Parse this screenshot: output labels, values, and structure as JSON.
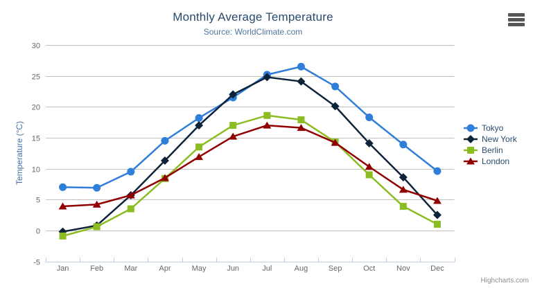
{
  "chart": {
    "credits": "Highcharts.com",
    "menu_icon": "hamburger-icon"
  },
  "colors": {
    "title": "#274b6d",
    "subtitle": "#4d759e",
    "axis_title": "#4572a7",
    "tick_label": "#666666",
    "grid_line": "#c0c0c0",
    "axis_line": "#c0d0e0",
    "legend_label": "#274b6d",
    "credits": "#909090",
    "menu_bars": "#565656"
  },
  "chart_data": {
    "type": "line",
    "title": "Monthly Average Temperature",
    "subtitle": "Source: WorldClimate.com",
    "xlabel": "",
    "ylabel": "Temperature (°C)",
    "categories": [
      "Jan",
      "Feb",
      "Mar",
      "Apr",
      "May",
      "Jun",
      "Jul",
      "Aug",
      "Sep",
      "Oct",
      "Nov",
      "Dec"
    ],
    "ylim": [
      -5,
      30
    ],
    "yticks": [
      -5,
      0,
      5,
      10,
      15,
      20,
      25,
      30
    ],
    "grid": true,
    "legend_position": "right-middle",
    "series": [
      {
        "name": "Tokyo",
        "color": "#2f7ed8",
        "marker": "circle",
        "values": [
          7.0,
          6.9,
          9.5,
          14.5,
          18.2,
          21.5,
          25.2,
          26.5,
          23.3,
          18.3,
          13.9,
          9.6
        ]
      },
      {
        "name": "New York",
        "color": "#0d233a",
        "marker": "diamond",
        "values": [
          -0.2,
          0.8,
          5.7,
          11.3,
          17.0,
          22.0,
          24.8,
          24.1,
          20.1,
          14.1,
          8.6,
          2.5
        ]
      },
      {
        "name": "Berlin",
        "color": "#8bbc21",
        "marker": "square",
        "values": [
          -0.9,
          0.6,
          3.5,
          8.4,
          13.5,
          17.0,
          18.6,
          17.9,
          14.3,
          9.0,
          3.9,
          1.0
        ]
      },
      {
        "name": "London",
        "color": "#910000",
        "marker": "triangle",
        "values": [
          3.9,
          4.2,
          5.7,
          8.5,
          11.9,
          15.2,
          17.0,
          16.6,
          14.2,
          10.3,
          6.6,
          4.8
        ]
      }
    ]
  }
}
